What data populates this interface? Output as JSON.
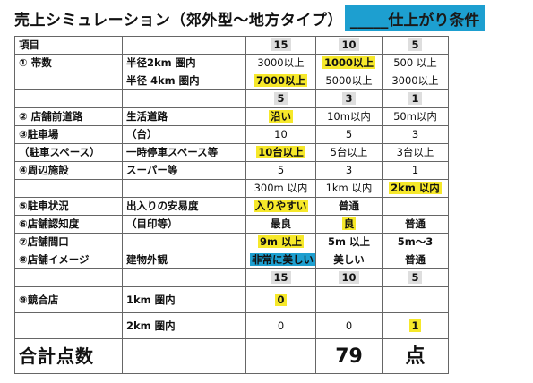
{
  "title": {
    "main": "売上シミュレーション（郊外型～地方タイプ）",
    "highlight": "_____仕上がり条件"
  },
  "table": {
    "header": {
      "label": "項目",
      "scores": [
        "15",
        "10",
        "5"
      ]
    },
    "r1": {
      "label": "① 帯数",
      "sub": "半径2km 圏内",
      "vals": [
        "3000以上",
        "1000以上",
        "500 以上"
      ]
    },
    "r2": {
      "sub": "半径 4km 圏内",
      "vals": [
        "7000以上",
        "5000以上",
        "3000以上"
      ]
    },
    "r3": {
      "scores": [
        "5",
        "3",
        "1"
      ]
    },
    "r4": {
      "label": "② 店舗前道路",
      "sub": "生活道路",
      "vals": [
        "沿い",
        "10m以内",
        "50m以内"
      ]
    },
    "r5": {
      "label": "③駐車場",
      "sub": "（台）",
      "scores": [
        "10",
        "5",
        "3"
      ]
    },
    "r6": {
      "label": "（駐車スペース）",
      "sub": "一時停車スペース等",
      "vals": [
        "10台以上",
        "5台以上",
        "3台以上"
      ]
    },
    "r7": {
      "label": "④周辺施設",
      "sub": "スーパー等",
      "scores": [
        "5",
        "3",
        "1"
      ]
    },
    "r8": {
      "vals": [
        "300m 以内",
        "1km 以内",
        "2km 以内"
      ]
    },
    "r9": {
      "label": "⑤駐車状況",
      "sub": "出入りの安易度",
      "vals": [
        "入りやすい",
        "普通",
        ""
      ]
    },
    "r10": {
      "label": "⑥店舗認知度",
      "sub": "（目印等）",
      "vals": [
        "最良",
        "良",
        "普通"
      ]
    },
    "r11": {
      "label": "⑦店舗間口",
      "sub": "",
      "vals": [
        "9m 以上",
        "5m 以上",
        "5m～3"
      ]
    },
    "r12": {
      "label": "⑧店舗イメージ",
      "sub": "建物外観",
      "vals": [
        "非常に美しい",
        "美しい",
        "普通"
      ]
    },
    "r13": {
      "scores": [
        "15",
        "10",
        "5"
      ]
    },
    "r14": {
      "label": "⑨競合店",
      "sub": "1km 圏内",
      "vals": [
        "0",
        "",
        ""
      ]
    },
    "r15": {
      "sub": "2km 圏内",
      "vals": [
        "0",
        "0",
        "1"
      ]
    },
    "total": {
      "label": "合計点数",
      "value": "79",
      "unit": "点"
    }
  }
}
